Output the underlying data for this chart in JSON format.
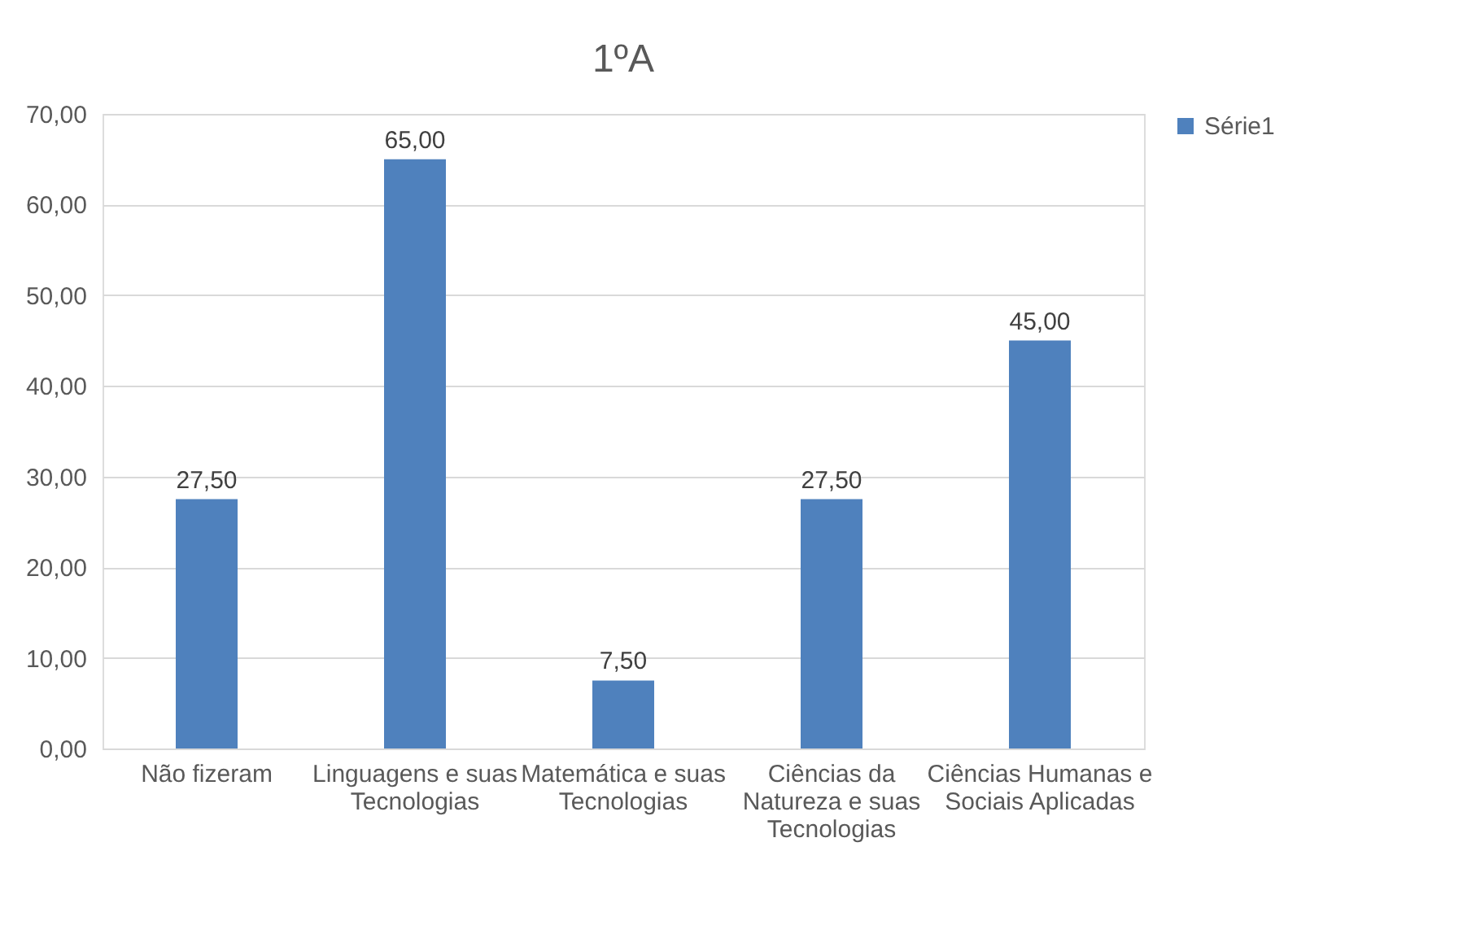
{
  "chart_data": {
    "type": "bar",
    "title": "1ºA",
    "categories": [
      "Não fizeram",
      "Linguagens e suas Tecnologias",
      "Matemática e suas Tecnologias",
      "Ciências da Natureza e suas Tecnologias",
      "Ciências Humanas e Sociais Aplicadas"
    ],
    "series": [
      {
        "name": "Série1",
        "color": "#4f81bd",
        "values": [
          27.5,
          65,
          7.5,
          27.5,
          45
        ],
        "value_labels": [
          "27,50",
          "65,00",
          "7,50",
          "27,50",
          "45,00"
        ]
      }
    ],
    "ylim": [
      0,
      70
    ],
    "yticks": [
      {
        "value": 0,
        "label": "0,00"
      },
      {
        "value": 10,
        "label": "10,00"
      },
      {
        "value": 20,
        "label": "20,00"
      },
      {
        "value": 30,
        "label": "30,00"
      },
      {
        "value": 40,
        "label": "40,00"
      },
      {
        "value": 50,
        "label": "50,00"
      },
      {
        "value": 60,
        "label": "60,00"
      },
      {
        "value": 70,
        "label": "70,00"
      }
    ],
    "grid": "y",
    "legend": "right"
  }
}
